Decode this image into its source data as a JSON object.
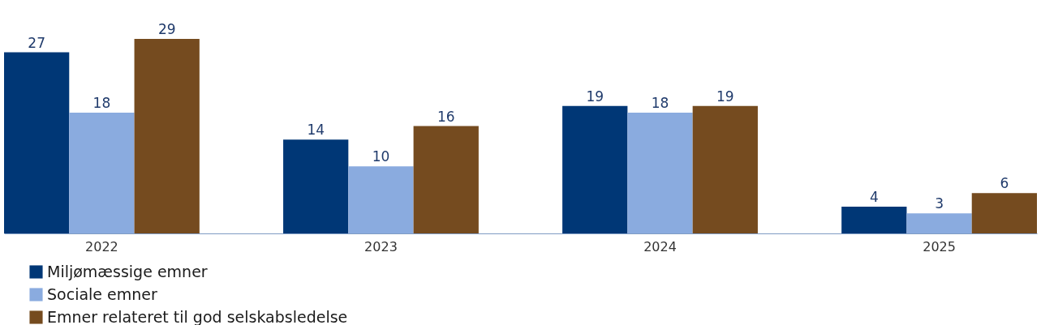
{
  "chart_data": {
    "type": "bar",
    "categories": [
      "2022",
      "2023",
      "2024",
      "2025"
    ],
    "series": [
      {
        "name": "Miljømæssige emner",
        "color": "#003776",
        "values": [
          27,
          14,
          19,
          4
        ]
      },
      {
        "name": "Sociale emner",
        "color": "#8aabdf",
        "values": [
          18,
          10,
          18,
          3
        ]
      },
      {
        "name": "Emner relateret til god selskabsledelse",
        "color": "#754b1f",
        "values": [
          29,
          16,
          19,
          6
        ]
      }
    ],
    "data_labels": true,
    "legend": "bottom left",
    "grid": false
  }
}
